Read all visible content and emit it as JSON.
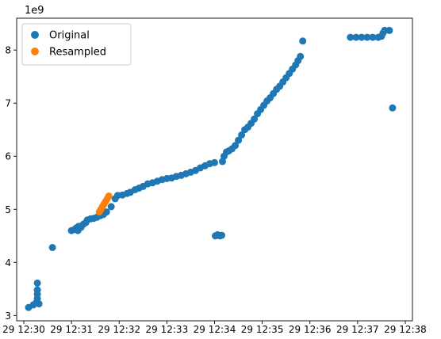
{
  "chart_data": {
    "type": "scatter",
    "title": "",
    "xlabel": "",
    "ylabel": "",
    "y_offset_text": "1e9",
    "y_multiplier": 1000000000.0,
    "xlim": [
      "2024-01-29T12:29:51",
      "2024-01-29T12:38:09"
    ],
    "ylim": [
      2.9,
      8.6
    ],
    "x_ticks": [
      {
        "label": "29 12:30",
        "value": "2024-01-29T12:30:00"
      },
      {
        "label": "29 12:31",
        "value": "2024-01-29T12:31:00"
      },
      {
        "label": "29 12:32",
        "value": "2024-01-29T12:32:00"
      },
      {
        "label": "29 12:33",
        "value": "2024-01-29T12:33:00"
      },
      {
        "label": "29 12:34",
        "value": "2024-01-29T12:34:00"
      },
      {
        "label": "29 12:35",
        "value": "2024-01-29T12:35:00"
      },
      {
        "label": "29 12:36",
        "value": "2024-01-29T12:36:00"
      },
      {
        "label": "29 12:37",
        "value": "2024-01-29T12:37:00"
      },
      {
        "label": "29 12:38",
        "value": "2024-01-29T12:38:00"
      }
    ],
    "y_ticks": [
      3,
      4,
      5,
      6,
      7,
      8
    ],
    "grid": false,
    "legend_position": "upper-left",
    "series": [
      {
        "name": "Original",
        "color": "#1f77b4",
        "points": [
          [
            "2024-01-29T12:30:06",
            3.15
          ],
          [
            "2024-01-29T12:30:12",
            3.2
          ],
          [
            "2024-01-29T12:30:16",
            3.25
          ],
          [
            "2024-01-29T12:30:17",
            3.32
          ],
          [
            "2024-01-29T12:30:17",
            3.4
          ],
          [
            "2024-01-29T12:30:17",
            3.48
          ],
          [
            "2024-01-29T12:30:17",
            3.61
          ],
          [
            "2024-01-29T12:30:19",
            3.22
          ],
          [
            "2024-01-29T12:30:36",
            4.28
          ],
          [
            "2024-01-29T12:31:00",
            4.6
          ],
          [
            "2024-01-29T12:31:04",
            4.62
          ],
          [
            "2024-01-29T12:31:06",
            4.65
          ],
          [
            "2024-01-29T12:31:08",
            4.6
          ],
          [
            "2024-01-29T12:31:09",
            4.68
          ],
          [
            "2024-01-29T12:31:12",
            4.66
          ],
          [
            "2024-01-29T12:31:15",
            4.72
          ],
          [
            "2024-01-29T12:31:18",
            4.75
          ],
          [
            "2024-01-29T12:31:20",
            4.8
          ],
          [
            "2024-01-29T12:31:24",
            4.82
          ],
          [
            "2024-01-29T12:31:28",
            4.83
          ],
          [
            "2024-01-29T12:31:32",
            4.85
          ],
          [
            "2024-01-29T12:31:36",
            4.88
          ],
          [
            "2024-01-29T12:31:40",
            4.9
          ],
          [
            "2024-01-29T12:31:44",
            4.95
          ],
          [
            "2024-01-29T12:31:50",
            5.05
          ],
          [
            "2024-01-29T12:31:55",
            5.2
          ],
          [
            "2024-01-29T12:31:58",
            5.26
          ],
          [
            "2024-01-29T12:32:04",
            5.27
          ],
          [
            "2024-01-29T12:32:10",
            5.3
          ],
          [
            "2024-01-29T12:32:14",
            5.32
          ],
          [
            "2024-01-29T12:32:20",
            5.37
          ],
          [
            "2024-01-29T12:32:25",
            5.4
          ],
          [
            "2024-01-29T12:32:30",
            5.43
          ],
          [
            "2024-01-29T12:32:36",
            5.48
          ],
          [
            "2024-01-29T12:32:42",
            5.5
          ],
          [
            "2024-01-29T12:32:48",
            5.53
          ],
          [
            "2024-01-29T12:32:54",
            5.56
          ],
          [
            "2024-01-29T12:33:00",
            5.58
          ],
          [
            "2024-01-29T12:33:06",
            5.59
          ],
          [
            "2024-01-29T12:33:12",
            5.62
          ],
          [
            "2024-01-29T12:33:18",
            5.64
          ],
          [
            "2024-01-29T12:33:24",
            5.67
          ],
          [
            "2024-01-29T12:33:30",
            5.7
          ],
          [
            "2024-01-29T12:33:36",
            5.73
          ],
          [
            "2024-01-29T12:33:42",
            5.78
          ],
          [
            "2024-01-29T12:33:48",
            5.82
          ],
          [
            "2024-01-29T12:33:54",
            5.86
          ],
          [
            "2024-01-29T12:34:00",
            5.88
          ],
          [
            "2024-01-29T12:34:01",
            4.5
          ],
          [
            "2024-01-29T12:34:04",
            4.52
          ],
          [
            "2024-01-29T12:34:07",
            4.5
          ],
          [
            "2024-01-29T12:34:09",
            4.51
          ],
          [
            "2024-01-29T12:34:10",
            5.9
          ],
          [
            "2024-01-29T12:34:12",
            6.0
          ],
          [
            "2024-01-29T12:34:15",
            6.08
          ],
          [
            "2024-01-29T12:34:18",
            6.1
          ],
          [
            "2024-01-29T12:34:22",
            6.14
          ],
          [
            "2024-01-29T12:34:26",
            6.2
          ],
          [
            "2024-01-29T12:34:30",
            6.3
          ],
          [
            "2024-01-29T12:34:34",
            6.4
          ],
          [
            "2024-01-29T12:34:38",
            6.5
          ],
          [
            "2024-01-29T12:34:42",
            6.55
          ],
          [
            "2024-01-29T12:34:46",
            6.62
          ],
          [
            "2024-01-29T12:34:50",
            6.7
          ],
          [
            "2024-01-29T12:34:54",
            6.8
          ],
          [
            "2024-01-29T12:34:58",
            6.88
          ],
          [
            "2024-01-29T12:35:02",
            6.96
          ],
          [
            "2024-01-29T12:35:06",
            7.04
          ],
          [
            "2024-01-29T12:35:10",
            7.1
          ],
          [
            "2024-01-29T12:35:14",
            7.18
          ],
          [
            "2024-01-29T12:35:18",
            7.26
          ],
          [
            "2024-01-29T12:35:22",
            7.32
          ],
          [
            "2024-01-29T12:35:26",
            7.4
          ],
          [
            "2024-01-29T12:35:30",
            7.48
          ],
          [
            "2024-01-29T12:35:34",
            7.56
          ],
          [
            "2024-01-29T12:35:38",
            7.64
          ],
          [
            "2024-01-29T12:35:42",
            7.72
          ],
          [
            "2024-01-29T12:35:45",
            7.8
          ],
          [
            "2024-01-29T12:35:48",
            7.88
          ],
          [
            "2024-01-29T12:35:51",
            8.17
          ],
          [
            "2024-01-29T12:36:51",
            8.24
          ],
          [
            "2024-01-29T12:36:58",
            8.24
          ],
          [
            "2024-01-29T12:37:05",
            8.24
          ],
          [
            "2024-01-29T12:37:12",
            8.24
          ],
          [
            "2024-01-29T12:37:19",
            8.24
          ],
          [
            "2024-01-29T12:37:26",
            8.24
          ],
          [
            "2024-01-29T12:37:30",
            8.26
          ],
          [
            "2024-01-29T12:37:32",
            8.32
          ],
          [
            "2024-01-29T12:37:34",
            8.37
          ],
          [
            "2024-01-29T12:37:40",
            8.37
          ],
          [
            "2024-01-29T12:37:44",
            6.91
          ]
        ]
      },
      {
        "name": "Resampled",
        "color": "#ff7f0e",
        "points": [
          [
            "2024-01-29T12:31:35",
            4.95
          ],
          [
            "2024-01-29T12:31:37",
            5.0
          ],
          [
            "2024-01-29T12:31:39",
            5.05
          ],
          [
            "2024-01-29T12:31:41",
            5.1
          ],
          [
            "2024-01-29T12:31:43",
            5.15
          ],
          [
            "2024-01-29T12:31:45",
            5.2
          ],
          [
            "2024-01-29T12:31:47",
            5.25
          ]
        ]
      }
    ]
  }
}
